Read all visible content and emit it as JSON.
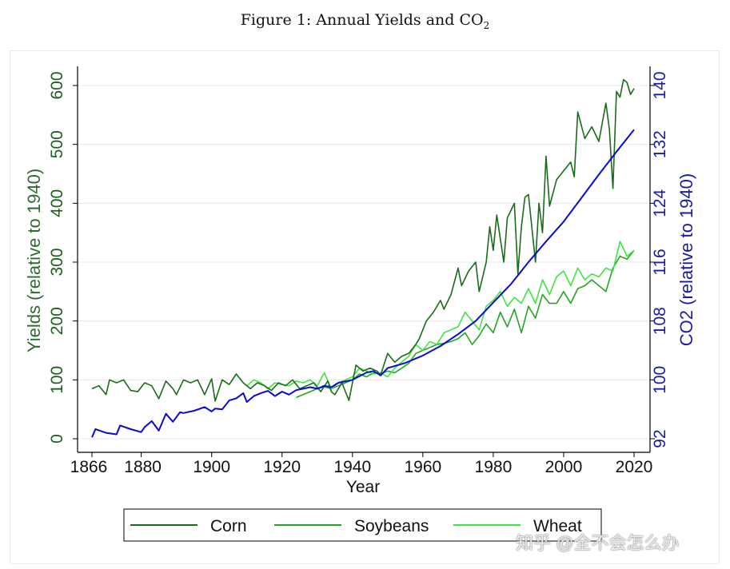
{
  "figure": {
    "title_main": "Figure 1: Annual Yields and CO",
    "title_sub": "2"
  },
  "watermark": "知乎 @全不会怎么办",
  "chart_data": {
    "type": "line",
    "xlabel": "Year",
    "ylabel_left": "Yields (relative to 1940)",
    "ylabel_right": "CO2 (relative to 1940)",
    "xlim": [
      1866,
      2020
    ],
    "xticks": [
      1866,
      1880,
      1900,
      1920,
      1940,
      1960,
      1980,
      2000,
      2020
    ],
    "ylim_left": [
      0,
      600
    ],
    "yticks_left": [
      0,
      100,
      200,
      300,
      400,
      500,
      600
    ],
    "ylim_right": [
      92,
      140
    ],
    "yticks_right": [
      92,
      100,
      108,
      116,
      124,
      132,
      140
    ],
    "grid": true,
    "legend_position": "bottom",
    "legend": [
      "Corn",
      "Soybeans",
      "Wheat"
    ],
    "colors": {
      "corn": "#1a6b1a",
      "soybeans": "#22a522",
      "wheat": "#3ee53e",
      "co2": "#0a0ad2",
      "grid": "#e3ebeb"
    },
    "series": [
      {
        "name": "Corn",
        "axis": "left",
        "x": [
          1866,
          1868,
          1870,
          1871,
          1873,
          1875,
          1877,
          1879,
          1881,
          1883,
          1885,
          1887,
          1889,
          1890,
          1892,
          1894,
          1896,
          1898,
          1900,
          1901,
          1903,
          1905,
          1907,
          1909,
          1911,
          1913,
          1915,
          1917,
          1919,
          1921,
          1923,
          1925,
          1927,
          1929,
          1931,
          1933,
          1934,
          1935,
          1937,
          1939,
          1941,
          1943,
          1945,
          1947,
          1948,
          1950,
          1952,
          1954,
          1956,
          1958,
          1959,
          1961,
          1963,
          1965,
          1966,
          1968,
          1970,
          1971,
          1973,
          1975,
          1976,
          1978,
          1979,
          1980,
          1981,
          1983,
          1984,
          1986,
          1987,
          1988,
          1989,
          1990,
          1992,
          1993,
          1994,
          1995,
          1996,
          1998,
          2000,
          2002,
          2003,
          2004,
          2006,
          2008,
          2010,
          2012,
          2013,
          2014,
          2015,
          2016,
          2017,
          2018,
          2019,
          2020
        ],
        "y": [
          85,
          90,
          75,
          100,
          95,
          100,
          82,
          80,
          95,
          90,
          68,
          98,
          85,
          75,
          100,
          95,
          100,
          75,
          102,
          64,
          100,
          92,
          110,
          95,
          85,
          95,
          90,
          82,
          95,
          90,
          100,
          85,
          90,
          95,
          80,
          98,
          80,
          75,
          95,
          65,
          125,
          115,
          120,
          115,
          108,
          145,
          130,
          140,
          145,
          160,
          170,
          200,
          215,
          235,
          220,
          245,
          290,
          260,
          285,
          300,
          250,
          300,
          360,
          320,
          380,
          300,
          375,
          400,
          280,
          360,
          410,
          415,
          300,
          400,
          350,
          480,
          395,
          440,
          455,
          470,
          445,
          555,
          510,
          530,
          505,
          570,
          525,
          425,
          590,
          580,
          610,
          605,
          585,
          595
        ]
      },
      {
        "name": "Soybeans",
        "axis": "left",
        "x": [
          1924,
          1926,
          1928,
          1930,
          1932,
          1934,
          1936,
          1938,
          1940,
          1942,
          1944,
          1946,
          1948,
          1950,
          1952,
          1954,
          1956,
          1958,
          1960,
          1962,
          1964,
          1966,
          1968,
          1970,
          1972,
          1974,
          1976,
          1978,
          1980,
          1982,
          1984,
          1986,
          1988,
          1990,
          1992,
          1994,
          1996,
          1998,
          2000,
          2002,
          2004,
          2006,
          2008,
          2010,
          2012,
          2014,
          2016,
          2018,
          2020
        ],
        "y": [
          70,
          75,
          80,
          85,
          88,
          85,
          90,
          95,
          100,
          110,
          105,
          112,
          110,
          115,
          112,
          120,
          128,
          145,
          150,
          155,
          160,
          162,
          165,
          170,
          180,
          160,
          175,
          195,
          180,
          215,
          190,
          220,
          180,
          225,
          205,
          245,
          230,
          230,
          250,
          230,
          255,
          260,
          270,
          260,
          250,
          290,
          310,
          305,
          320
        ]
      },
      {
        "name": "Wheat",
        "axis": "left",
        "x": [
          1910,
          1912,
          1914,
          1916,
          1918,
          1920,
          1922,
          1924,
          1926,
          1928,
          1930,
          1932,
          1934,
          1936,
          1938,
          1940,
          1942,
          1944,
          1946,
          1948,
          1950,
          1952,
          1954,
          1956,
          1958,
          1960,
          1962,
          1964,
          1966,
          1968,
          1970,
          1972,
          1974,
          1976,
          1978,
          1980,
          1982,
          1984,
          1986,
          1988,
          1990,
          1992,
          1994,
          1996,
          1998,
          2000,
          2002,
          2004,
          2006,
          2008,
          2010,
          2012,
          2014,
          2016,
          2018,
          2020
        ],
        "y": [
          90,
          100,
          95,
          85,
          95,
          92,
          90,
          98,
          95,
          100,
          90,
          112,
          85,
          95,
          100,
          105,
          120,
          115,
          110,
          112,
          105,
          120,
          130,
          140,
          160,
          150,
          165,
          160,
          180,
          185,
          190,
          215,
          200,
          185,
          225,
          235,
          250,
          225,
          240,
          230,
          255,
          230,
          270,
          245,
          275,
          285,
          260,
          290,
          270,
          280,
          275,
          290,
          285,
          335,
          310,
          320
        ]
      },
      {
        "name": "CO2",
        "axis": "right",
        "x": [
          1866,
          1867,
          1870,
          1873,
          1874,
          1877,
          1880,
          1881,
          1883,
          1885,
          1887,
          1889,
          1891,
          1892,
          1895,
          1898,
          1900,
          1901,
          1903,
          1905,
          1907,
          1909,
          1910,
          1912,
          1914,
          1916,
          1918,
          1920,
          1922,
          1924,
          1926,
          1928,
          1930,
          1932,
          1934,
          1936,
          1938,
          1940,
          1942,
          1944,
          1946,
          1948,
          1950,
          1955,
          1960,
          1965,
          1970,
          1975,
          1980,
          1985,
          1990,
          1995,
          2000,
          2005,
          2010,
          2015,
          2020
        ],
        "y": [
          92.2,
          93.3,
          92.8,
          92.6,
          93.8,
          93.3,
          92.9,
          93.6,
          94.4,
          93.1,
          95.4,
          94.3,
          95.6,
          95.5,
          95.8,
          96.3,
          95.7,
          96.1,
          96.0,
          97.2,
          97.5,
          98.2,
          97.0,
          97.8,
          98.2,
          98.5,
          97.8,
          98.4,
          98.0,
          98.6,
          98.8,
          99.0,
          98.8,
          99.2,
          99.0,
          99.6,
          99.8,
          100.0,
          100.5,
          101.0,
          101.2,
          100.6,
          101.6,
          102.3,
          103.3,
          104.6,
          106.2,
          108.0,
          110.5,
          113.0,
          116.0,
          118.8,
          121.5,
          124.7,
          127.9,
          131.0,
          134.0
        ]
      }
    ]
  }
}
